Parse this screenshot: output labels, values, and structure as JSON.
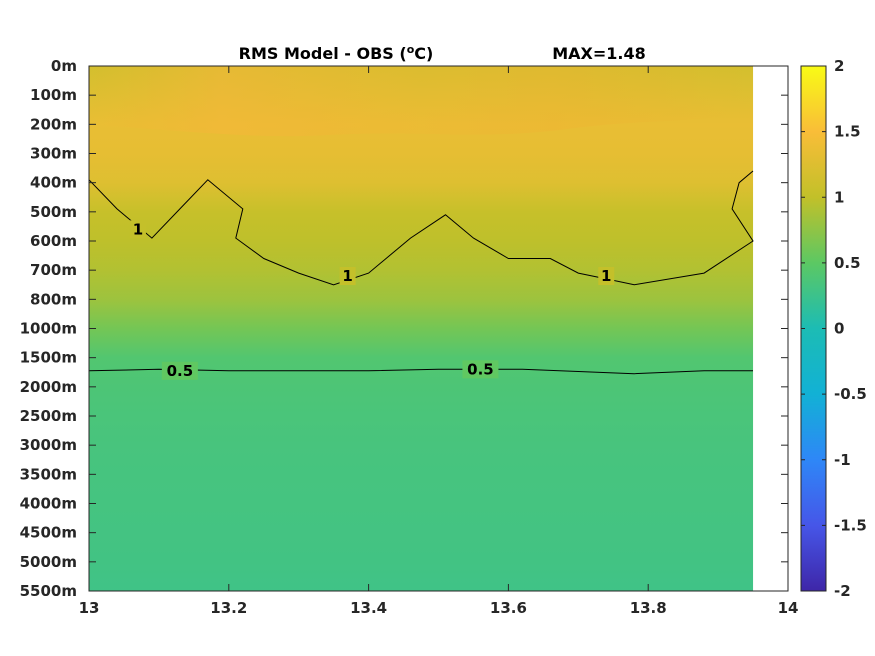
{
  "chart_data": {
    "type": "heatmap",
    "title": "RMS Model - OBS (°C)",
    "title_parts": {
      "main": "RMS Model - OBS (",
      "superscript": "o",
      "unit": "C)"
    },
    "max_annotation": "MAX=1.48",
    "x": {
      "min": 13,
      "max": 14,
      "data_extent": 13.95,
      "ticks": [
        13,
        13.2,
        13.4,
        13.6,
        13.8,
        14
      ],
      "tick_labels": [
        "13",
        "13.2",
        "13.4",
        "13.6",
        "13.8",
        "14"
      ]
    },
    "y": {
      "tick_labels": [
        "0m",
        "100m",
        "200m",
        "300m",
        "400m",
        "500m",
        "600m",
        "700m",
        "800m",
        "1000m",
        "1500m",
        "2000m",
        "2500m",
        "3000m",
        "3500m",
        "4000m",
        "4500m",
        "5000m",
        "5500m"
      ]
    },
    "colorbar": {
      "min": -2,
      "max": 2,
      "ticks": [
        2,
        1.5,
        1,
        0.5,
        0,
        -0.5,
        -1,
        -1.5,
        -2
      ],
      "tick_labels": [
        "2",
        "1.5",
        "1",
        "0.5",
        "0",
        "-0.5",
        "-1",
        "-1.5",
        "-2"
      ]
    },
    "level_profile": [
      1.15,
      1.25,
      1.35,
      1.33,
      1.25,
      1.05,
      0.98,
      0.92,
      0.82,
      0.62,
      0.42,
      0.38,
      0.36,
      0.34,
      0.33,
      0.32,
      0.31,
      0.3,
      0.28
    ],
    "contours": [
      {
        "level": 1,
        "label": "1",
        "points": [
          [
            13.0,
            3.9
          ],
          [
            13.04,
            4.9
          ],
          [
            13.09,
            5.9
          ],
          [
            13.13,
            4.9
          ],
          [
            13.17,
            3.9
          ],
          [
            13.22,
            4.9
          ],
          [
            13.21,
            5.9
          ],
          [
            13.25,
            6.6
          ],
          [
            13.3,
            7.1
          ],
          [
            13.35,
            7.5
          ],
          [
            13.4,
            7.1
          ],
          [
            13.46,
            5.9
          ],
          [
            13.51,
            5.1
          ],
          [
            13.55,
            5.9
          ],
          [
            13.6,
            6.6
          ],
          [
            13.66,
            6.6
          ],
          [
            13.7,
            7.1
          ],
          [
            13.74,
            7.3
          ],
          [
            13.78,
            7.5
          ],
          [
            13.88,
            7.1
          ],
          [
            13.95,
            6.0
          ],
          [
            13.92,
            4.9
          ],
          [
            13.93,
            4.0
          ],
          [
            13.95,
            3.6
          ]
        ],
        "label_positions": [
          [
            13.07,
            5.6
          ],
          [
            13.37,
            7.2
          ],
          [
            13.74,
            7.2
          ]
        ]
      },
      {
        "level": 0.5,
        "label": "0.5",
        "points": [
          [
            13.0,
            10.45
          ],
          [
            13.1,
            10.4
          ],
          [
            13.2,
            10.45
          ],
          [
            13.3,
            10.45
          ],
          [
            13.4,
            10.45
          ],
          [
            13.5,
            10.4
          ],
          [
            13.62,
            10.4
          ],
          [
            13.78,
            10.55
          ],
          [
            13.88,
            10.45
          ],
          [
            13.95,
            10.45
          ]
        ],
        "label_positions": [
          [
            13.13,
            10.45
          ],
          [
            13.56,
            10.4
          ]
        ]
      }
    ],
    "grid": false
  }
}
